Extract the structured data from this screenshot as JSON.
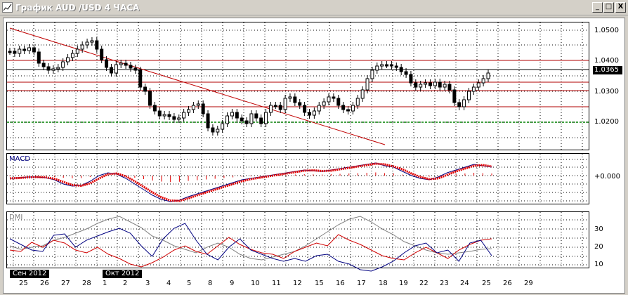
{
  "window": {
    "title": "График AUD /USD  4 ЧАСА",
    "buttons": {
      "minimize": "_",
      "maximize": "□",
      "close": "X"
    }
  },
  "price_axis": {
    "labels": [
      "1.0500",
      "1.0400",
      "1.0300",
      "1.0200"
    ],
    "current_price": "1.0365"
  },
  "macd": {
    "title": "MACD",
    "zero_label": "+0.000"
  },
  "dmi": {
    "title": "DMI",
    "scale_labels": [
      "30",
      "20",
      "10"
    ]
  },
  "time_axis": {
    "month_labels": [
      "Сен 2012",
      "Окт 2012"
    ],
    "dates": [
      "25",
      "26",
      "27",
      "28",
      "1",
      "2",
      "3",
      "4",
      "5",
      "8",
      "9",
      "10",
      "11",
      "12",
      "15",
      "16",
      "17",
      "18",
      "19",
      "22",
      "23",
      "24",
      "25",
      "26",
      "29"
    ]
  },
  "colors": {
    "background": "#ffffff",
    "grid": "#000000",
    "resistance": "#b00000",
    "support": "#008000",
    "trendline": "#c00000",
    "macd_signal": "#e00000",
    "macd_line": "#000080"
  }
}
